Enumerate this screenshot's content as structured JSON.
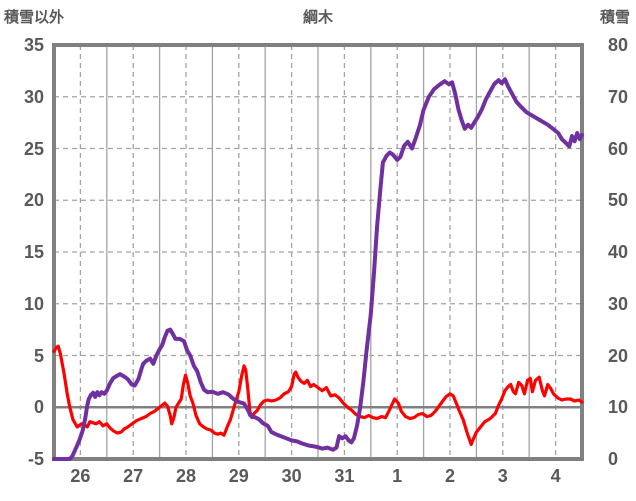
{
  "colors": {
    "text": "#595959",
    "grid": "#A3A3A3",
    "border": "#808080",
    "zero_line": "#808080",
    "red_series": "#FF0000",
    "purple_series": "#7030A0",
    "background": "#FFFFFF"
  },
  "chart_data": {
    "type": "line",
    "title": "綱木",
    "grid": "on",
    "legend": "none",
    "x_axis": {
      "tick_labels": [
        "26",
        "27",
        "28",
        "29",
        "30",
        "31",
        "1",
        "2",
        "3",
        "4"
      ],
      "range_days": [
        0,
        10
      ],
      "major_gridline": "solid at day boundaries",
      "minor_gridline": "dashed at half days"
    },
    "left_axis": {
      "title": "積雪以外",
      "ticks": [
        35,
        30,
        25,
        20,
        15,
        10,
        5,
        0,
        -5
      ],
      "range": [
        -5,
        35
      ]
    },
    "right_axis": {
      "title": "積雪",
      "ticks": [
        80,
        70,
        60,
        50,
        40,
        30,
        20,
        10,
        0
      ],
      "range": [
        0,
        80
      ]
    },
    "series": [
      {
        "name": "積雪以外",
        "axis": "left",
        "color": "#FF0000",
        "width": 3.2,
        "points": [
          [
            0,
            5.4
          ],
          [
            0.05,
            5.8
          ],
          [
            0.08,
            5.9
          ],
          [
            0.12,
            5.2
          ],
          [
            0.19,
            3.3
          ],
          [
            0.25,
            1.3
          ],
          [
            0.3,
            0.0
          ],
          [
            0.36,
            -1.2
          ],
          [
            0.44,
            -1.9
          ],
          [
            0.52,
            -1.6
          ],
          [
            0.58,
            -1.7
          ],
          [
            0.63,
            -1.9
          ],
          [
            0.68,
            -1.4
          ],
          [
            0.74,
            -1.5
          ],
          [
            0.8,
            -1.6
          ],
          [
            0.86,
            -1.4
          ],
          [
            0.93,
            -1.8
          ],
          [
            1.0,
            -1.6
          ],
          [
            1.06,
            -2.0
          ],
          [
            1.13,
            -2.3
          ],
          [
            1.2,
            -2.5
          ],
          [
            1.27,
            -2.4
          ],
          [
            1.33,
            -2.1
          ],
          [
            1.4,
            -1.9
          ],
          [
            1.48,
            -1.6
          ],
          [
            1.56,
            -1.3
          ],
          [
            1.65,
            -1.1
          ],
          [
            1.74,
            -0.9
          ],
          [
            1.82,
            -0.6
          ],
          [
            1.9,
            -0.4
          ],
          [
            1.98,
            -0.1
          ],
          [
            2.05,
            0.2
          ],
          [
            2.1,
            0.4
          ],
          [
            2.15,
            0.1
          ],
          [
            2.2,
            -0.8
          ],
          [
            2.23,
            -1.6
          ],
          [
            2.27,
            -1.0
          ],
          [
            2.31,
            0.0
          ],
          [
            2.36,
            0.4
          ],
          [
            2.41,
            0.8
          ],
          [
            2.45,
            2.2
          ],
          [
            2.49,
            3.1
          ],
          [
            2.53,
            2.4
          ],
          [
            2.58,
            1.1
          ],
          [
            2.63,
            0.4
          ],
          [
            2.69,
            -0.8
          ],
          [
            2.76,
            -1.6
          ],
          [
            2.83,
            -1.9
          ],
          [
            2.9,
            -2.1
          ],
          [
            2.97,
            -2.2
          ],
          [
            3.04,
            -2.5
          ],
          [
            3.1,
            -2.6
          ],
          [
            3.16,
            -2.5
          ],
          [
            3.22,
            -2.7
          ],
          [
            3.28,
            -1.9
          ],
          [
            3.34,
            -1.2
          ],
          [
            3.42,
            0.2
          ],
          [
            3.5,
            1.5
          ],
          [
            3.56,
            3.2
          ],
          [
            3.6,
            4.0
          ],
          [
            3.63,
            3.6
          ],
          [
            3.67,
            1.8
          ],
          [
            3.71,
            -0.4
          ],
          [
            3.75,
            -1.0
          ],
          [
            3.79,
            -0.6
          ],
          [
            3.85,
            -0.3
          ],
          [
            3.92,
            0.3
          ],
          [
            3.98,
            0.6
          ],
          [
            4.05,
            0.7
          ],
          [
            4.12,
            0.6
          ],
          [
            4.2,
            0.7
          ],
          [
            4.28,
            0.9
          ],
          [
            4.36,
            1.3
          ],
          [
            4.44,
            1.5
          ],
          [
            4.5,
            2.0
          ],
          [
            4.55,
            3.2
          ],
          [
            4.58,
            3.4
          ],
          [
            4.62,
            2.9
          ],
          [
            4.68,
            2.5
          ],
          [
            4.74,
            2.3
          ],
          [
            4.8,
            2.6
          ],
          [
            4.86,
            2.0
          ],
          [
            4.92,
            2.2
          ],
          [
            5.0,
            1.9
          ],
          [
            5.08,
            1.6
          ],
          [
            5.16,
            1.9
          ],
          [
            5.24,
            1.1
          ],
          [
            5.32,
            1.2
          ],
          [
            5.4,
            0.9
          ],
          [
            5.48,
            0.4
          ],
          [
            5.56,
            0.0
          ],
          [
            5.64,
            -0.3
          ],
          [
            5.72,
            -0.7
          ],
          [
            5.8,
            -0.9
          ],
          [
            5.88,
            -1.0
          ],
          [
            5.96,
            -0.8
          ],
          [
            6.04,
            -1.0
          ],
          [
            6.12,
            -1.1
          ],
          [
            6.2,
            -0.9
          ],
          [
            6.28,
            -1.0
          ],
          [
            6.36,
            -0.2
          ],
          [
            6.45,
            0.8
          ],
          [
            6.52,
            0.4
          ],
          [
            6.58,
            -0.4
          ],
          [
            6.66,
            -0.9
          ],
          [
            6.74,
            -1.1
          ],
          [
            6.82,
            -1.0
          ],
          [
            6.9,
            -0.7
          ],
          [
            6.98,
            -0.6
          ],
          [
            7.06,
            -0.9
          ],
          [
            7.14,
            -0.8
          ],
          [
            7.22,
            -0.4
          ],
          [
            7.32,
            0.3
          ],
          [
            7.42,
            1.0
          ],
          [
            7.5,
            1.3
          ],
          [
            7.56,
            1.1
          ],
          [
            7.62,
            0.4
          ],
          [
            7.68,
            -0.4
          ],
          [
            7.75,
            -1.2
          ],
          [
            7.82,
            -2.4
          ],
          [
            7.88,
            -3.3
          ],
          [
            7.9,
            -3.6
          ],
          [
            7.94,
            -3.1
          ],
          [
            8.0,
            -2.4
          ],
          [
            8.08,
            -1.9
          ],
          [
            8.16,
            -1.4
          ],
          [
            8.26,
            -1.1
          ],
          [
            8.36,
            -0.6
          ],
          [
            8.42,
            0.2
          ],
          [
            8.48,
            0.8
          ],
          [
            8.54,
            1.6
          ],
          [
            8.6,
            2.0
          ],
          [
            8.65,
            2.2
          ],
          [
            8.7,
            1.5
          ],
          [
            8.74,
            1.3
          ],
          [
            8.8,
            2.4
          ],
          [
            8.86,
            2.1
          ],
          [
            8.91,
            1.3
          ],
          [
            8.97,
            2.6
          ],
          [
            9.02,
            2.8
          ],
          [
            9.06,
            1.5
          ],
          [
            9.12,
            2.6
          ],
          [
            9.19,
            2.9
          ],
          [
            9.25,
            1.6
          ],
          [
            9.29,
            1.1
          ],
          [
            9.35,
            2.2
          ],
          [
            9.41,
            1.8
          ],
          [
            9.46,
            1.3
          ],
          [
            9.54,
            0.9
          ],
          [
            9.62,
            0.7
          ],
          [
            9.7,
            0.8
          ],
          [
            9.78,
            0.8
          ],
          [
            9.86,
            0.6
          ],
          [
            9.94,
            0.7
          ],
          [
            10,
            0.5
          ]
        ]
      },
      {
        "name": "積雪",
        "axis": "right",
        "color": "#7030A0",
        "width": 4,
        "points": [
          [
            0,
            0
          ],
          [
            0.3,
            0
          ],
          [
            0.35,
            0.6
          ],
          [
            0.42,
            2.2
          ],
          [
            0.48,
            3.6
          ],
          [
            0.54,
            5.4
          ],
          [
            0.59,
            7.8
          ],
          [
            0.63,
            10.4
          ],
          [
            0.66,
            11.6
          ],
          [
            0.7,
            12.4
          ],
          [
            0.74,
            12.8
          ],
          [
            0.78,
            12.0
          ],
          [
            0.82,
            12.9
          ],
          [
            0.86,
            12.3
          ],
          [
            0.9,
            12.9
          ],
          [
            0.95,
            12.6
          ],
          [
            1.0,
            13.2
          ],
          [
            1.06,
            14.6
          ],
          [
            1.12,
            15.6
          ],
          [
            1.18,
            16.0
          ],
          [
            1.25,
            16.4
          ],
          [
            1.32,
            16.0
          ],
          [
            1.4,
            15.4
          ],
          [
            1.47,
            14.4
          ],
          [
            1.53,
            14.2
          ],
          [
            1.6,
            15.5
          ],
          [
            1.66,
            17.5
          ],
          [
            1.69,
            18.4
          ],
          [
            1.75,
            19.0
          ],
          [
            1.82,
            19.4
          ],
          [
            1.88,
            18.4
          ],
          [
            1.94,
            20.0
          ],
          [
            2.0,
            21.2
          ],
          [
            2.05,
            22.0
          ],
          [
            2.1,
            23.6
          ],
          [
            2.15,
            24.8
          ],
          [
            2.2,
            25.0
          ],
          [
            2.25,
            24.2
          ],
          [
            2.3,
            23.2
          ],
          [
            2.38,
            23.2
          ],
          [
            2.46,
            22.8
          ],
          [
            2.52,
            21.0
          ],
          [
            2.58,
            20.0
          ],
          [
            2.65,
            18.0
          ],
          [
            2.71,
            17.0
          ],
          [
            2.78,
            14.8
          ],
          [
            2.84,
            13.4
          ],
          [
            2.91,
            12.9
          ],
          [
            3.0,
            13.0
          ],
          [
            3.1,
            12.6
          ],
          [
            3.2,
            12.9
          ],
          [
            3.3,
            12.5
          ],
          [
            3.4,
            11.6
          ],
          [
            3.5,
            11.0
          ],
          [
            3.6,
            10.7
          ],
          [
            3.67,
            9.5
          ],
          [
            3.72,
            8.4
          ],
          [
            3.8,
            8.1
          ],
          [
            3.88,
            7.7
          ],
          [
            3.96,
            6.9
          ],
          [
            4.05,
            6.4
          ],
          [
            4.12,
            5.2
          ],
          [
            4.2,
            4.8
          ],
          [
            4.3,
            4.4
          ],
          [
            4.4,
            4.0
          ],
          [
            4.5,
            3.6
          ],
          [
            4.6,
            3.4
          ],
          [
            4.7,
            3.0
          ],
          [
            4.82,
            2.6
          ],
          [
            4.95,
            2.4
          ],
          [
            5.08,
            2.0
          ],
          [
            5.18,
            2.2
          ],
          [
            5.28,
            1.8
          ],
          [
            5.35,
            2.2
          ],
          [
            5.4,
            4.4
          ],
          [
            5.46,
            4.0
          ],
          [
            5.52,
            4.4
          ],
          [
            5.58,
            3.6
          ],
          [
            5.63,
            3.2
          ],
          [
            5.68,
            4.0
          ],
          [
            5.74,
            6.5
          ],
          [
            5.8,
            10.0
          ],
          [
            5.86,
            15.0
          ],
          [
            5.92,
            21.0
          ],
          [
            6.0,
            28.0
          ],
          [
            6.06,
            36.0
          ],
          [
            6.12,
            45.0
          ],
          [
            6.18,
            52.0
          ],
          [
            6.23,
            57.3
          ],
          [
            6.3,
            58.6
          ],
          [
            6.36,
            59.2
          ],
          [
            6.42,
            58.8
          ],
          [
            6.5,
            57.8
          ],
          [
            6.56,
            58.4
          ],
          [
            6.63,
            60.5
          ],
          [
            6.7,
            61.3
          ],
          [
            6.78,
            60.0
          ],
          [
            6.85,
            62.0
          ],
          [
            6.93,
            64.5
          ],
          [
            7.0,
            67.5
          ],
          [
            7.1,
            70.0
          ],
          [
            7.2,
            71.5
          ],
          [
            7.3,
            72.3
          ],
          [
            7.4,
            73.0
          ],
          [
            7.48,
            72.4
          ],
          [
            7.54,
            72.8
          ],
          [
            7.6,
            70.5
          ],
          [
            7.66,
            67.6
          ],
          [
            7.72,
            65.5
          ],
          [
            7.78,
            63.8
          ],
          [
            7.84,
            64.6
          ],
          [
            7.9,
            64.0
          ],
          [
            7.96,
            65.0
          ],
          [
            8.02,
            66.0
          ],
          [
            8.1,
            67.5
          ],
          [
            8.18,
            69.5
          ],
          [
            8.26,
            71.0
          ],
          [
            8.34,
            72.5
          ],
          [
            8.42,
            73.2
          ],
          [
            8.48,
            72.6
          ],
          [
            8.54,
            73.4
          ],
          [
            8.6,
            72.0
          ],
          [
            8.68,
            70.5
          ],
          [
            8.76,
            69.0
          ],
          [
            8.85,
            68.0
          ],
          [
            8.95,
            67.0
          ],
          [
            9.05,
            66.4
          ],
          [
            9.15,
            65.8
          ],
          [
            9.25,
            65.2
          ],
          [
            9.35,
            64.6
          ],
          [
            9.45,
            63.8
          ],
          [
            9.55,
            63.0
          ],
          [
            9.62,
            61.8
          ],
          [
            9.7,
            61.0
          ],
          [
            9.76,
            60.4
          ],
          [
            9.81,
            62.4
          ],
          [
            9.86,
            61.4
          ],
          [
            9.91,
            63.0
          ],
          [
            9.96,
            61.8
          ],
          [
            10,
            62.6
          ]
        ]
      }
    ]
  }
}
